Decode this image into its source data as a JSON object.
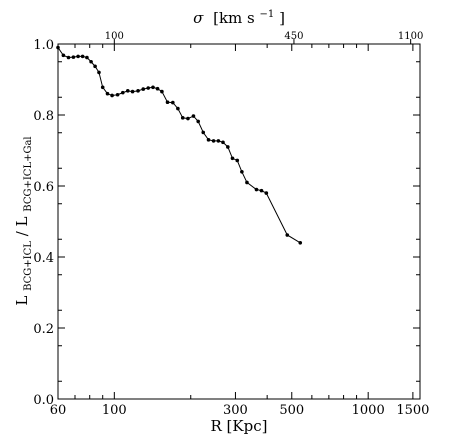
{
  "chart_data": {
    "type": "line",
    "xscale": "log",
    "xlim": [
      60,
      1600
    ],
    "ylim": [
      0.0,
      1.0
    ],
    "xlabel": "R [Kpc]",
    "ylabel_main": "L",
    "ylabel_num": "BCG+ICL",
    "ylabel_den": "BCG+ICL+Gal",
    "ylabel_sep": "/",
    "top_axis_label": {
      "symbol": "σ",
      "units_prefix": "[km s",
      "units_exp": "−1",
      "units_suffix": "]"
    },
    "top_ticks": [
      {
        "label": "100",
        "r": 100
      },
      {
        "label": "450",
        "r": 510
      },
      {
        "label": "1100",
        "r": 1470
      }
    ],
    "x_ticks": [
      {
        "label": "60",
        "value": 60
      },
      {
        "label": "100",
        "value": 100
      },
      {
        "label": "300",
        "value": 300
      },
      {
        "label": "500",
        "value": 500
      },
      {
        "label": "1000",
        "value": 1000
      },
      {
        "label": "1500",
        "value": 1500
      }
    ],
    "y_ticks": [
      {
        "label": "0.0",
        "value": 0.0
      },
      {
        "label": "0.2",
        "value": 0.2
      },
      {
        "label": "0.4",
        "value": 0.4
      },
      {
        "label": "0.6",
        "value": 0.6
      },
      {
        "label": "0.8",
        "value": 0.8
      },
      {
        "label": "1.0",
        "value": 1.0
      }
    ],
    "grid": false,
    "series": [
      {
        "x": [
          60,
          63,
          66,
          69,
          72,
          75,
          78,
          81,
          84,
          87,
          90,
          94,
          98,
          103,
          108,
          113,
          118,
          124,
          130,
          136,
          142,
          148,
          154,
          162,
          170,
          178,
          186,
          195,
          205,
          214,
          224,
          235,
          246,
          257,
          268,
          280,
          292,
          305,
          318,
          333,
          363,
          380,
          397,
          480,
          540
        ],
        "y": [
          0.99,
          0.968,
          0.962,
          0.963,
          0.965,
          0.965,
          0.962,
          0.95,
          0.937,
          0.92,
          0.878,
          0.86,
          0.855,
          0.857,
          0.863,
          0.868,
          0.866,
          0.868,
          0.873,
          0.876,
          0.878,
          0.874,
          0.866,
          0.836,
          0.835,
          0.818,
          0.792,
          0.79,
          0.797,
          0.782,
          0.751,
          0.73,
          0.727,
          0.727,
          0.723,
          0.71,
          0.678,
          0.672,
          0.64,
          0.61,
          0.59,
          0.587,
          0.58,
          0.462,
          0.44
        ]
      }
    ]
  }
}
